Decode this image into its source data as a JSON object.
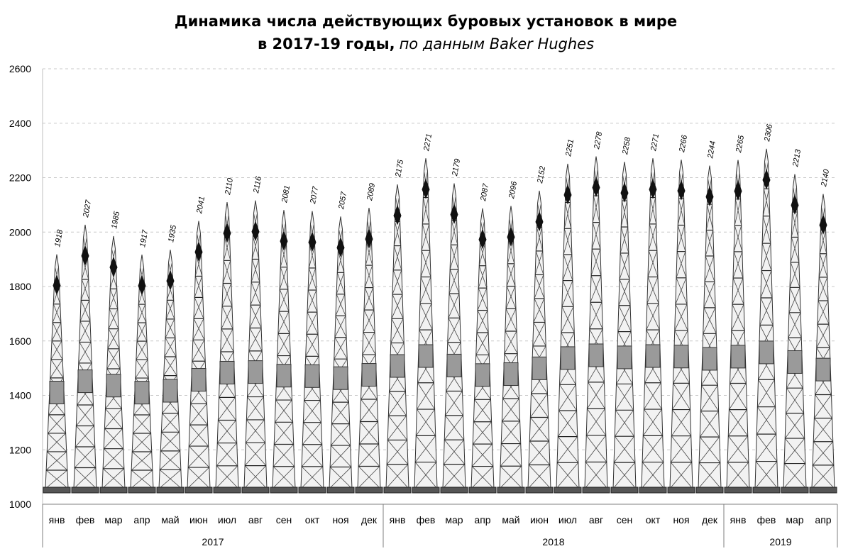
{
  "chart_data": {
    "type": "bar",
    "title_line1": "Динамика числа действующих буровых установок в мире",
    "title_line2_bold": "в 2017-19 годы,",
    "title_line2_italic": "по данным Baker Hughes",
    "ylim": [
      1000,
      2600
    ],
    "yticks": [
      "1000",
      "1200",
      "1400",
      "1600",
      "1800",
      "2000",
      "2200",
      "2400",
      "2600"
    ],
    "grid": "horizontal dashed",
    "bar_style": "pictogram: drilling rig towers",
    "categories": [
      "янв",
      "фев",
      "мар",
      "апр",
      "май",
      "июн",
      "июл",
      "авг",
      "сен",
      "окт",
      "ноя",
      "дек",
      "янв",
      "фев",
      "мар",
      "апр",
      "май",
      "июн",
      "июл",
      "авг",
      "сен",
      "окт",
      "ноя",
      "дек",
      "янв",
      "фев",
      "мар",
      "апр"
    ],
    "years": [
      {
        "label": "2017",
        "months": 12
      },
      {
        "label": "2018",
        "months": 12
      },
      {
        "label": "2019",
        "months": 4
      }
    ],
    "values": [
      1918,
      2027,
      1985,
      1917,
      1935,
      2041,
      2110,
      2116,
      2081,
      2077,
      2057,
      2089,
      2175,
      2271,
      2179,
      2087,
      2096,
      2152,
      2251,
      2278,
      2258,
      2271,
      2266,
      2244,
      2265,
      2306,
      2213,
      2140
    ],
    "data_labels": [
      "1918",
      "2027",
      "1985",
      "1917",
      "1935",
      "2041",
      "2110",
      "2116",
      "2081",
      "2077",
      "2057",
      "2089",
      "2175",
      "2271",
      "2179",
      "2087",
      "2096",
      "2152",
      "2251",
      "2278",
      "2258",
      "2271",
      "2266",
      "2244",
      "2265",
      "2306",
      "2213",
      "2140"
    ]
  }
}
